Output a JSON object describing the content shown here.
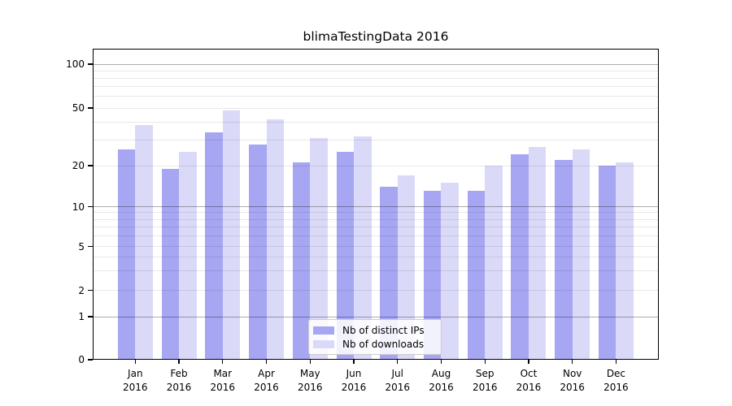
{
  "title": "blimaTestingData 2016",
  "chart_data": {
    "type": "bar",
    "title": "blimaTestingData 2016",
    "categories": [
      "Jan",
      "Feb",
      "Mar",
      "Apr",
      "May",
      "Jun",
      "Jul",
      "Aug",
      "Sep",
      "Oct",
      "Nov",
      "Dec"
    ],
    "year_label": "2016",
    "series": [
      {
        "name": "Nb of distinct IPs",
        "color": "#a6a6f2",
        "values": [
          26,
          19,
          34,
          28,
          21,
          25,
          14,
          13,
          13,
          24,
          22,
          20
        ]
      },
      {
        "name": "Nb of downloads",
        "color": "#dadaf8",
        "values": [
          38,
          25,
          48,
          42,
          31,
          32,
          17,
          15,
          20,
          27,
          26,
          21
        ]
      }
    ],
    "yscale": "symlog",
    "y_ticks": [
      100,
      50,
      20,
      10,
      5,
      2,
      1,
      0
    ],
    "y_minor_gridlines": [
      2,
      3,
      4,
      5,
      6,
      7,
      8,
      9,
      20,
      30,
      40,
      50,
      60,
      70,
      80,
      90
    ],
    "y_major_gridlines": [
      1,
      10,
      100
    ],
    "ylim": [
      0,
      126
    ],
    "grid": true,
    "legend": {
      "labels": [
        "Nb of distinct IPs",
        "Nb of downloads"
      ],
      "position": "lower center"
    }
  }
}
